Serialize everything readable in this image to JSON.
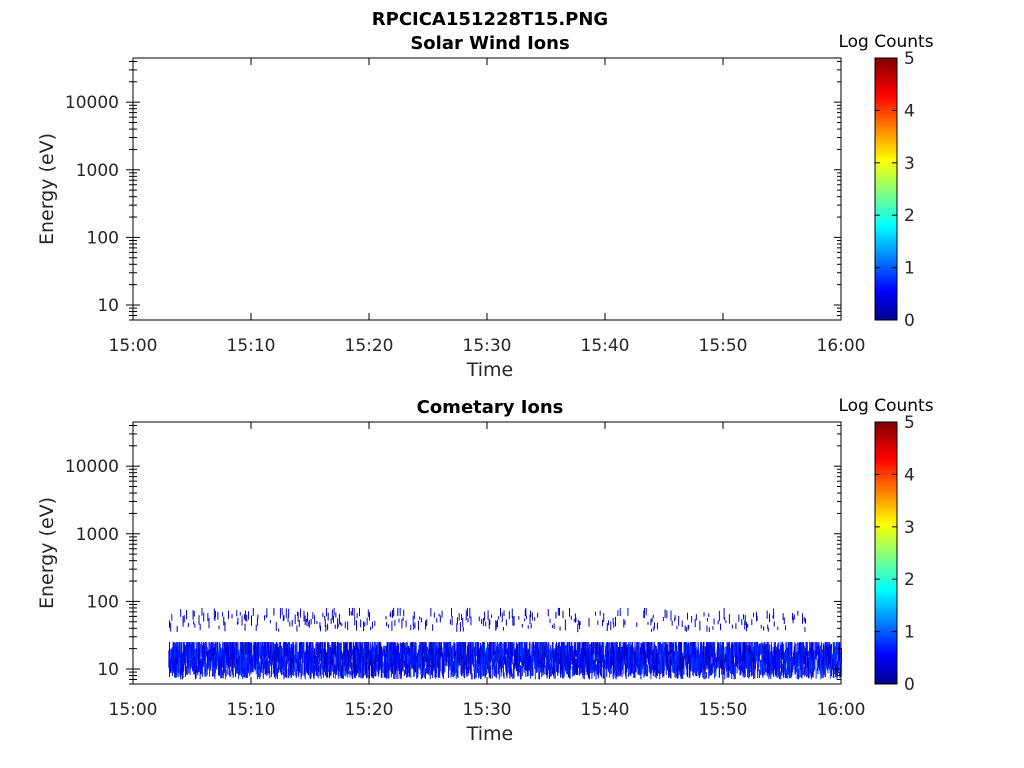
{
  "figure": {
    "title": "RPCICA151228T15.PNG"
  },
  "chart_data": [
    {
      "type": "heatmap",
      "title": "Solar Wind Ions",
      "xlabel": "Time",
      "ylabel": "Energy (eV)",
      "x_ticks": [
        "15:00",
        "15:10",
        "15:20",
        "15:30",
        "15:40",
        "15:50",
        "16:00"
      ],
      "x_range_minutes": [
        0,
        60
      ],
      "y_scale": "log",
      "y_ticks": [
        "10",
        "100",
        "1000",
        "10000"
      ],
      "y_tick_values": [
        10,
        100,
        1000,
        10000
      ],
      "y_range": [
        6,
        45000
      ],
      "colorbar": {
        "label": "Log Counts",
        "ticks": [
          "0",
          "1",
          "2",
          "3",
          "4",
          "5"
        ],
        "range": [
          0,
          5
        ],
        "colormap": "jet"
      },
      "grid": false,
      "data": []
    },
    {
      "type": "heatmap",
      "title": "Cometary Ions",
      "xlabel": "Time",
      "ylabel": "Energy (eV)",
      "x_ticks": [
        "15:00",
        "15:10",
        "15:20",
        "15:30",
        "15:40",
        "15:50",
        "16:00"
      ],
      "x_range_minutes": [
        0,
        60
      ],
      "y_scale": "log",
      "y_ticks": [
        "10",
        "100",
        "1000",
        "10000"
      ],
      "y_tick_values": [
        10,
        100,
        1000,
        10000
      ],
      "y_range": [
        6,
        45000
      ],
      "colorbar": {
        "label": "Log Counts",
        "ticks": [
          "0",
          "1",
          "2",
          "3",
          "4",
          "5"
        ],
        "range": [
          0,
          5
        ],
        "colormap": "jet"
      },
      "grid": false,
      "data": [
        {
          "name": "low-energy band",
          "time_range": [
            "15:03",
            "16:00"
          ],
          "energy_range_eV": [
            7,
            25
          ],
          "log_counts_range": [
            0.2,
            1.0
          ]
        },
        {
          "name": "upper band",
          "time_range": [
            "15:03",
            "15:57"
          ],
          "energy_range_eV": [
            35,
            80
          ],
          "log_counts_range": [
            0.1,
            0.5
          ]
        }
      ]
    }
  ]
}
